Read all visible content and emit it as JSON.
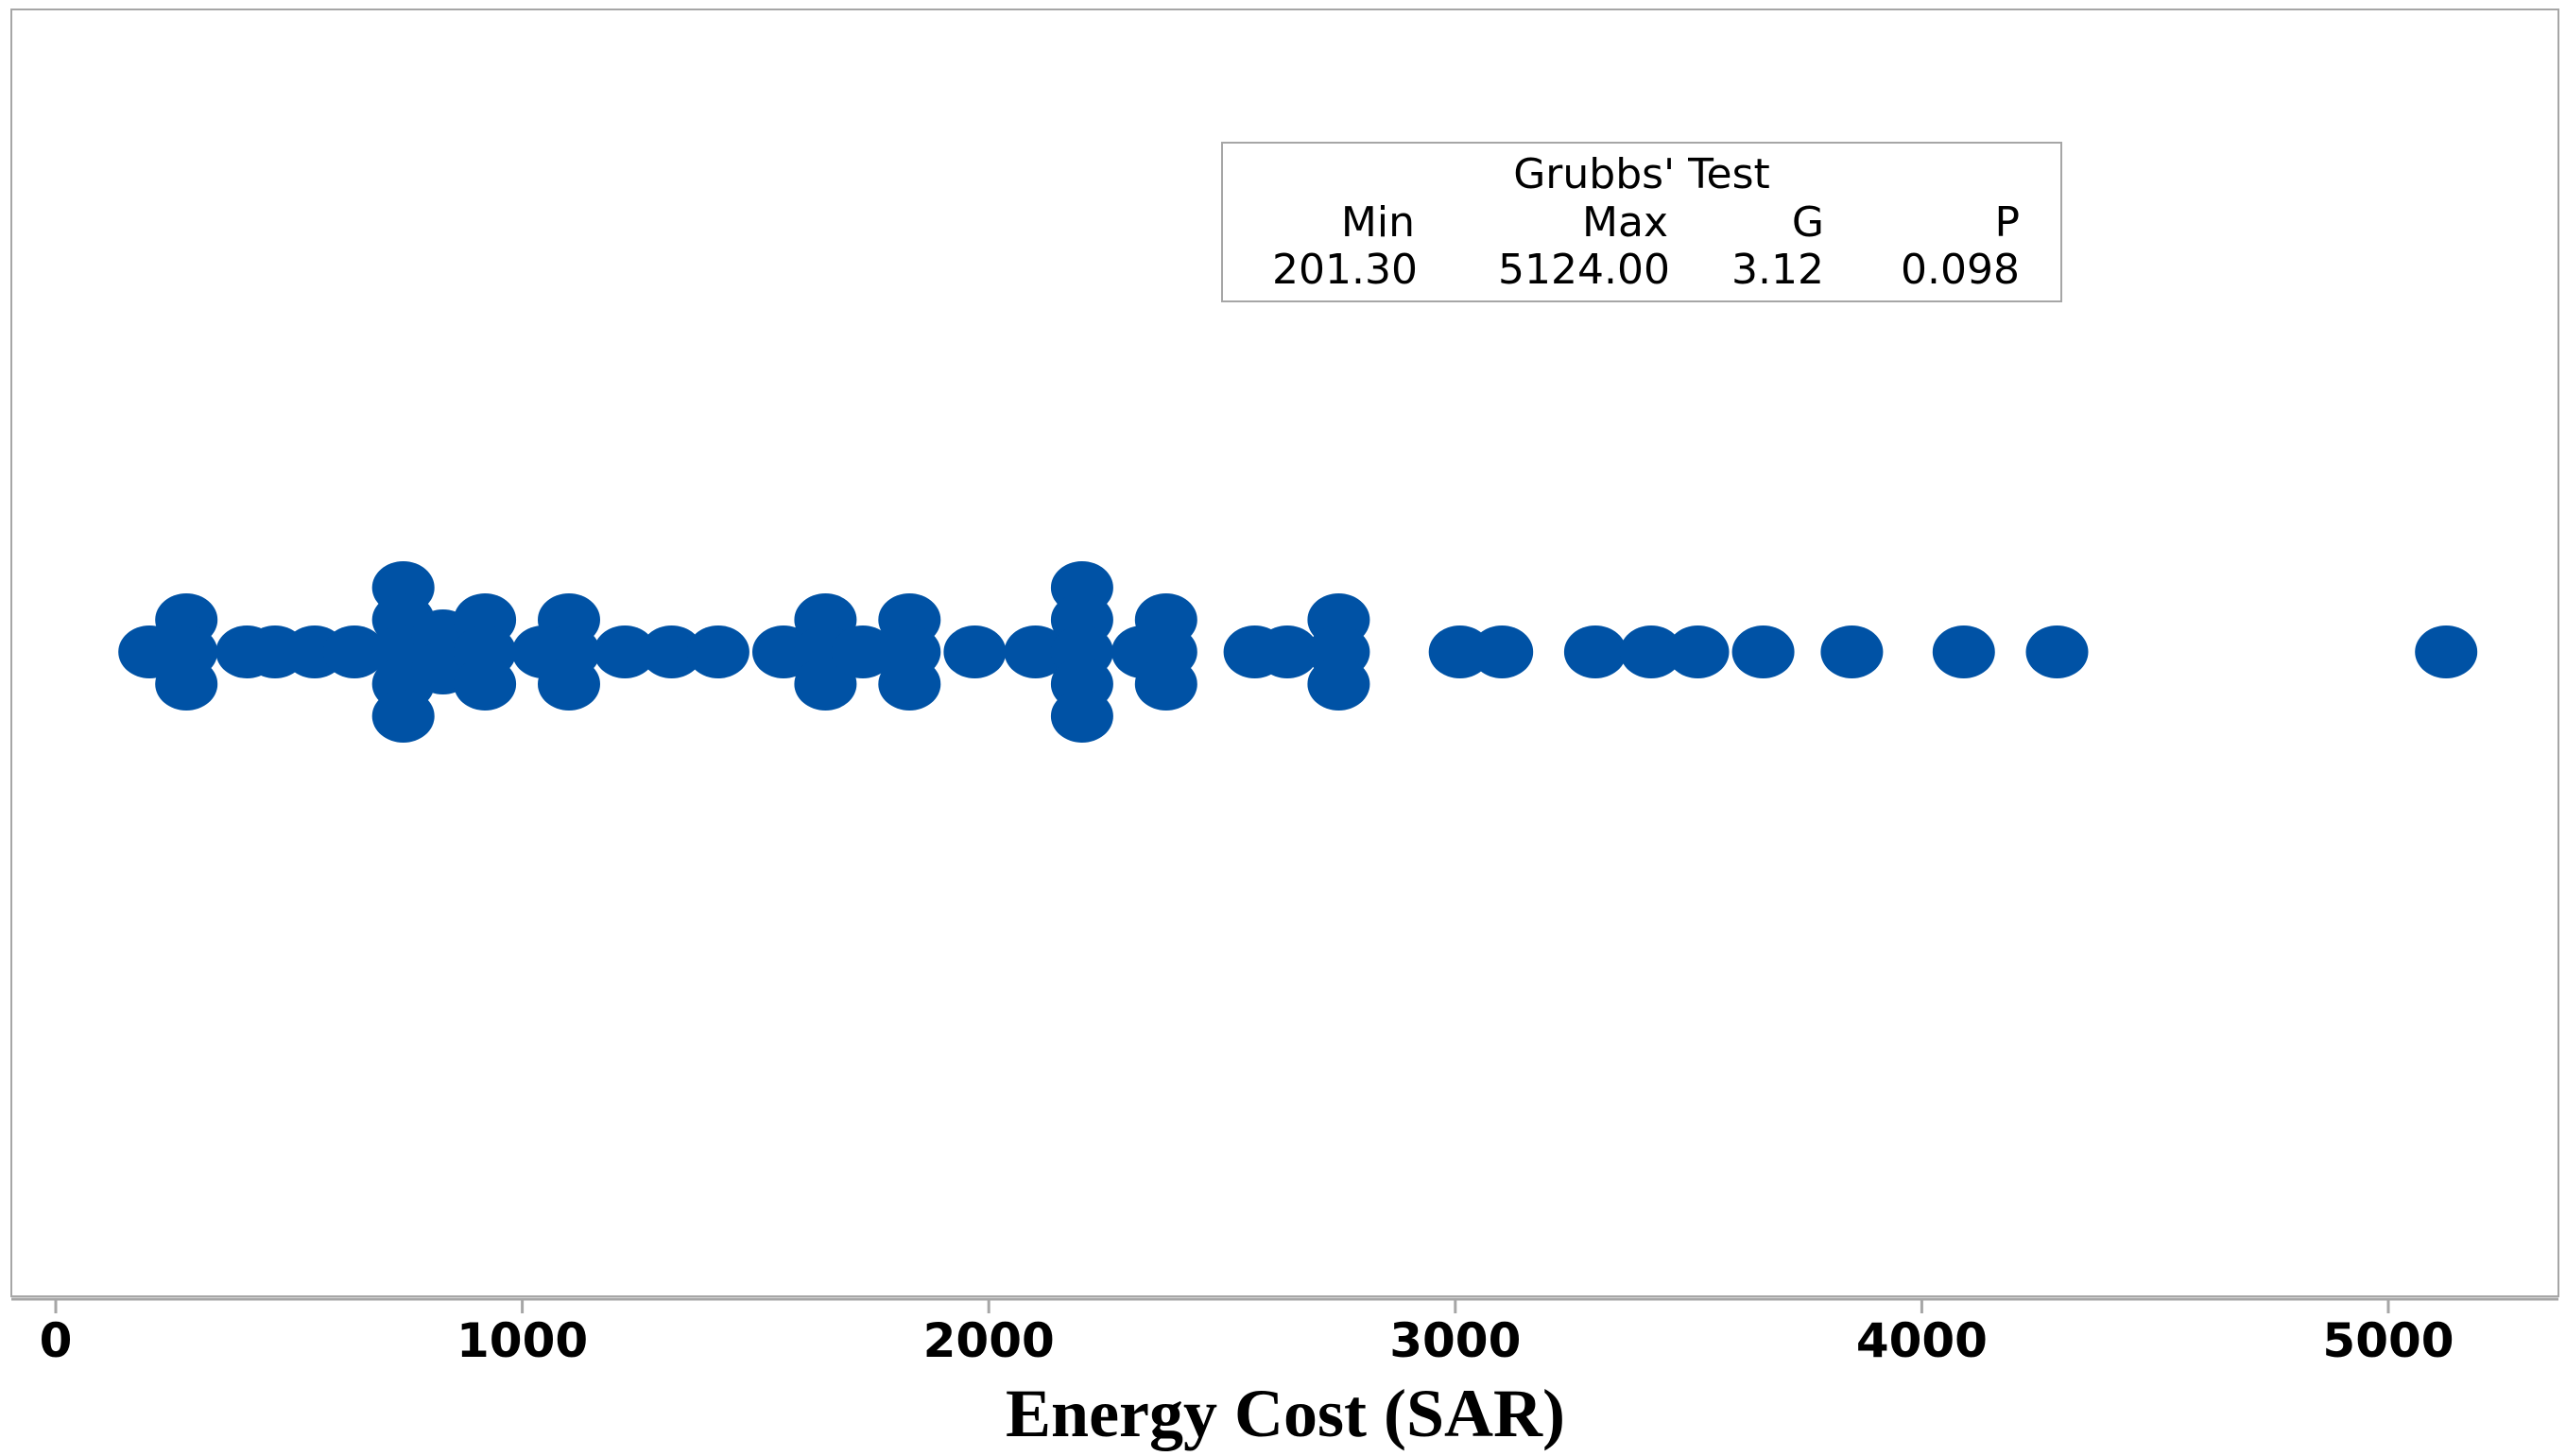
{
  "colors": {
    "marker": "#0052A5",
    "frame": "#A6A6A6",
    "axis": "#A6A6A6",
    "background": "#FFFFFF"
  },
  "stats_box": {
    "title": "Grubbs' Test",
    "headers": [
      "Min",
      "Max",
      "G",
      "P"
    ],
    "values": [
      "201.30",
      "5124.00",
      "3.12",
      "0.098"
    ]
  },
  "chart_data": {
    "type": "scatter",
    "subtype": "dotplot",
    "xlabel": "Energy Cost (SAR)",
    "ylabel": "",
    "xlim": [
      -100,
      5400
    ],
    "xticks": [
      0,
      1000,
      2000,
      3000,
      4000,
      5000
    ],
    "x_tick_labels": [
      "0",
      "1000",
      "2000",
      "3000",
      "4000",
      "5000"
    ],
    "grid": false,
    "legend": "none",
    "bins": [
      {
        "x": 201,
        "count": 1
      },
      {
        "x": 280,
        "count": 3
      },
      {
        "x": 410,
        "count": 1
      },
      {
        "x": 470,
        "count": 1
      },
      {
        "x": 555,
        "count": 1
      },
      {
        "x": 640,
        "count": 1
      },
      {
        "x": 745,
        "count": 5
      },
      {
        "x": 830,
        "count": 2
      },
      {
        "x": 920,
        "count": 3
      },
      {
        "x": 1045,
        "count": 1
      },
      {
        "x": 1100,
        "count": 3
      },
      {
        "x": 1220,
        "count": 1
      },
      {
        "x": 1320,
        "count": 1
      },
      {
        "x": 1420,
        "count": 1
      },
      {
        "x": 1560,
        "count": 1
      },
      {
        "x": 1650,
        "count": 3
      },
      {
        "x": 1730,
        "count": 1
      },
      {
        "x": 1830,
        "count": 3
      },
      {
        "x": 1970,
        "count": 1
      },
      {
        "x": 2100,
        "count": 1
      },
      {
        "x": 2200,
        "count": 5
      },
      {
        "x": 2330,
        "count": 1
      },
      {
        "x": 2380,
        "count": 3
      },
      {
        "x": 2570,
        "count": 1
      },
      {
        "x": 2640,
        "count": 1
      },
      {
        "x": 2750,
        "count": 3
      },
      {
        "x": 3010,
        "count": 1
      },
      {
        "x": 3100,
        "count": 1
      },
      {
        "x": 3300,
        "count": 1
      },
      {
        "x": 3420,
        "count": 1
      },
      {
        "x": 3520,
        "count": 1
      },
      {
        "x": 3660,
        "count": 1
      },
      {
        "x": 3850,
        "count": 1
      },
      {
        "x": 4090,
        "count": 1
      },
      {
        "x": 4290,
        "count": 1
      },
      {
        "x": 5124,
        "count": 1
      }
    ]
  }
}
